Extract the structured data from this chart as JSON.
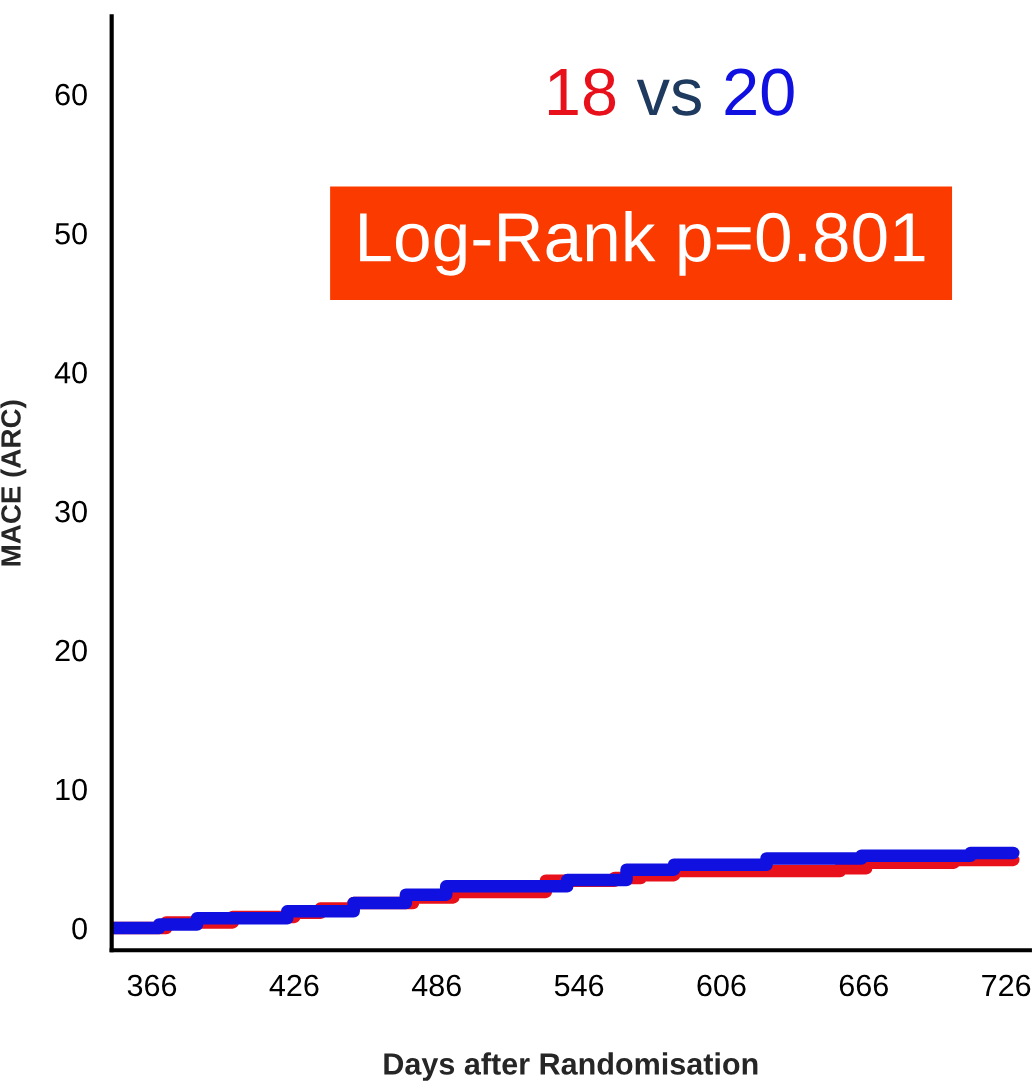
{
  "chart_data": {
    "type": "step",
    "xlabel": "Days after Randomisation",
    "ylabel": "MACE (ARC)",
    "xlim": [
      349,
      736
    ],
    "ylim": [
      -1.6,
      65.6
    ],
    "xticks": [
      366,
      426,
      486,
      546,
      606,
      666,
      726
    ],
    "yticks": [
      0,
      10,
      20,
      30,
      40,
      50,
      60
    ],
    "grid": false,
    "annotations": [
      "vs",
      "Log-Rank p=0.801"
    ],
    "series": [
      {
        "name": "18",
        "color": "#e8101a",
        "x": [
          349,
          372,
          400,
          426,
          437,
          451,
          476,
          493,
          532,
          561,
          572,
          586,
          656,
          667,
          704,
          729
        ],
        "values": [
          0,
          0.4,
          0.8,
          1.1,
          1.4,
          1.8,
          2.2,
          2.6,
          3.4,
          3.6,
          3.8,
          4.1,
          4.3,
          4.7,
          4.9,
          4.9
        ]
      },
      {
        "name": "20",
        "color": "#1010e0",
        "x": [
          349,
          369,
          385,
          423,
          451,
          473,
          490,
          541,
          566,
          586,
          625,
          665,
          711,
          729
        ],
        "values": [
          0,
          0.25,
          0.7,
          1.2,
          1.8,
          2.4,
          3.0,
          3.45,
          4.2,
          4.55,
          5.0,
          5.2,
          5.4,
          5.4
        ]
      }
    ]
  }
}
